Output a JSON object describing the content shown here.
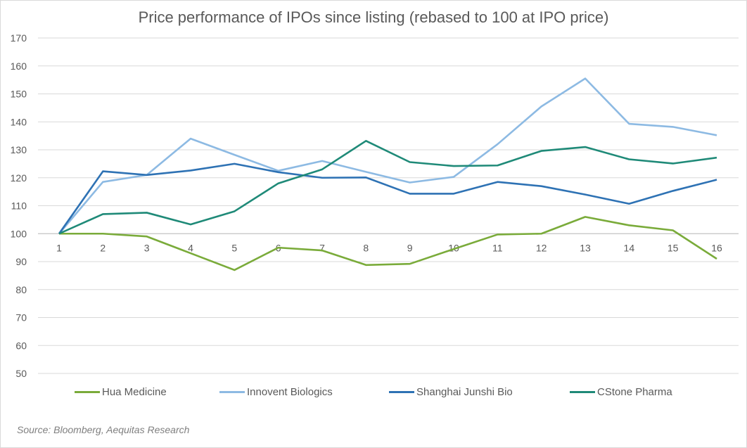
{
  "chart_data": {
    "type": "line",
    "title": "Price performance of IPOs since listing (rebased to 100 at IPO price)",
    "xlabel": "",
    "ylabel": "",
    "x": [
      1,
      2,
      3,
      4,
      5,
      6,
      7,
      8,
      9,
      10,
      11,
      12,
      13,
      14,
      15,
      16
    ],
    "x_tick_labels": [
      "1",
      "2",
      "3",
      "4",
      "5",
      "6",
      "7",
      "8",
      "9",
      "10",
      "11",
      "12",
      "13",
      "14",
      "15",
      "16"
    ],
    "y_ticks": [
      50,
      60,
      70,
      80,
      90,
      100,
      110,
      120,
      130,
      140,
      150,
      160,
      170
    ],
    "y_tick_labels": [
      "50",
      "60",
      "70",
      "80",
      "90",
      "100",
      "110",
      "120",
      "130",
      "140",
      "150",
      "160",
      "170"
    ],
    "ylim": [
      50,
      170
    ],
    "x_axis_crosses_at": 100,
    "grid": true,
    "legend_position": "bottom",
    "series": [
      {
        "name": "Hua Medicine",
        "color": "#7AAB3A",
        "values": [
          100,
          100,
          99,
          93,
          87,
          95,
          94,
          88.8,
          89.2,
          94.5,
          99.7,
          100,
          106,
          103,
          101.2,
          91
        ]
      },
      {
        "name": "Innovent Biologics",
        "color": "#8DBAE3",
        "values": [
          100,
          118.5,
          121,
          134,
          128.2,
          122.5,
          126,
          122.1,
          118.3,
          120.3,
          132,
          145.5,
          155.5,
          139.3,
          138.2,
          135.2
        ]
      },
      {
        "name": "Shanghai Junshi Bio",
        "color": "#2E72B4",
        "values": [
          100,
          122.3,
          121,
          122.6,
          125,
          122,
          120,
          120.1,
          114.3,
          114.3,
          118.5,
          117,
          114,
          110.7,
          115.3,
          119.3
        ]
      },
      {
        "name": "CStone Pharma",
        "color": "#1F8A78",
        "values": [
          100,
          107,
          107.5,
          103.3,
          108,
          118,
          123,
          133.2,
          125.6,
          124.2,
          124.4,
          129.6,
          131,
          126.6,
          125.1,
          127.2
        ]
      }
    ]
  },
  "source": "Source: Bloomberg, Aequitas Research"
}
